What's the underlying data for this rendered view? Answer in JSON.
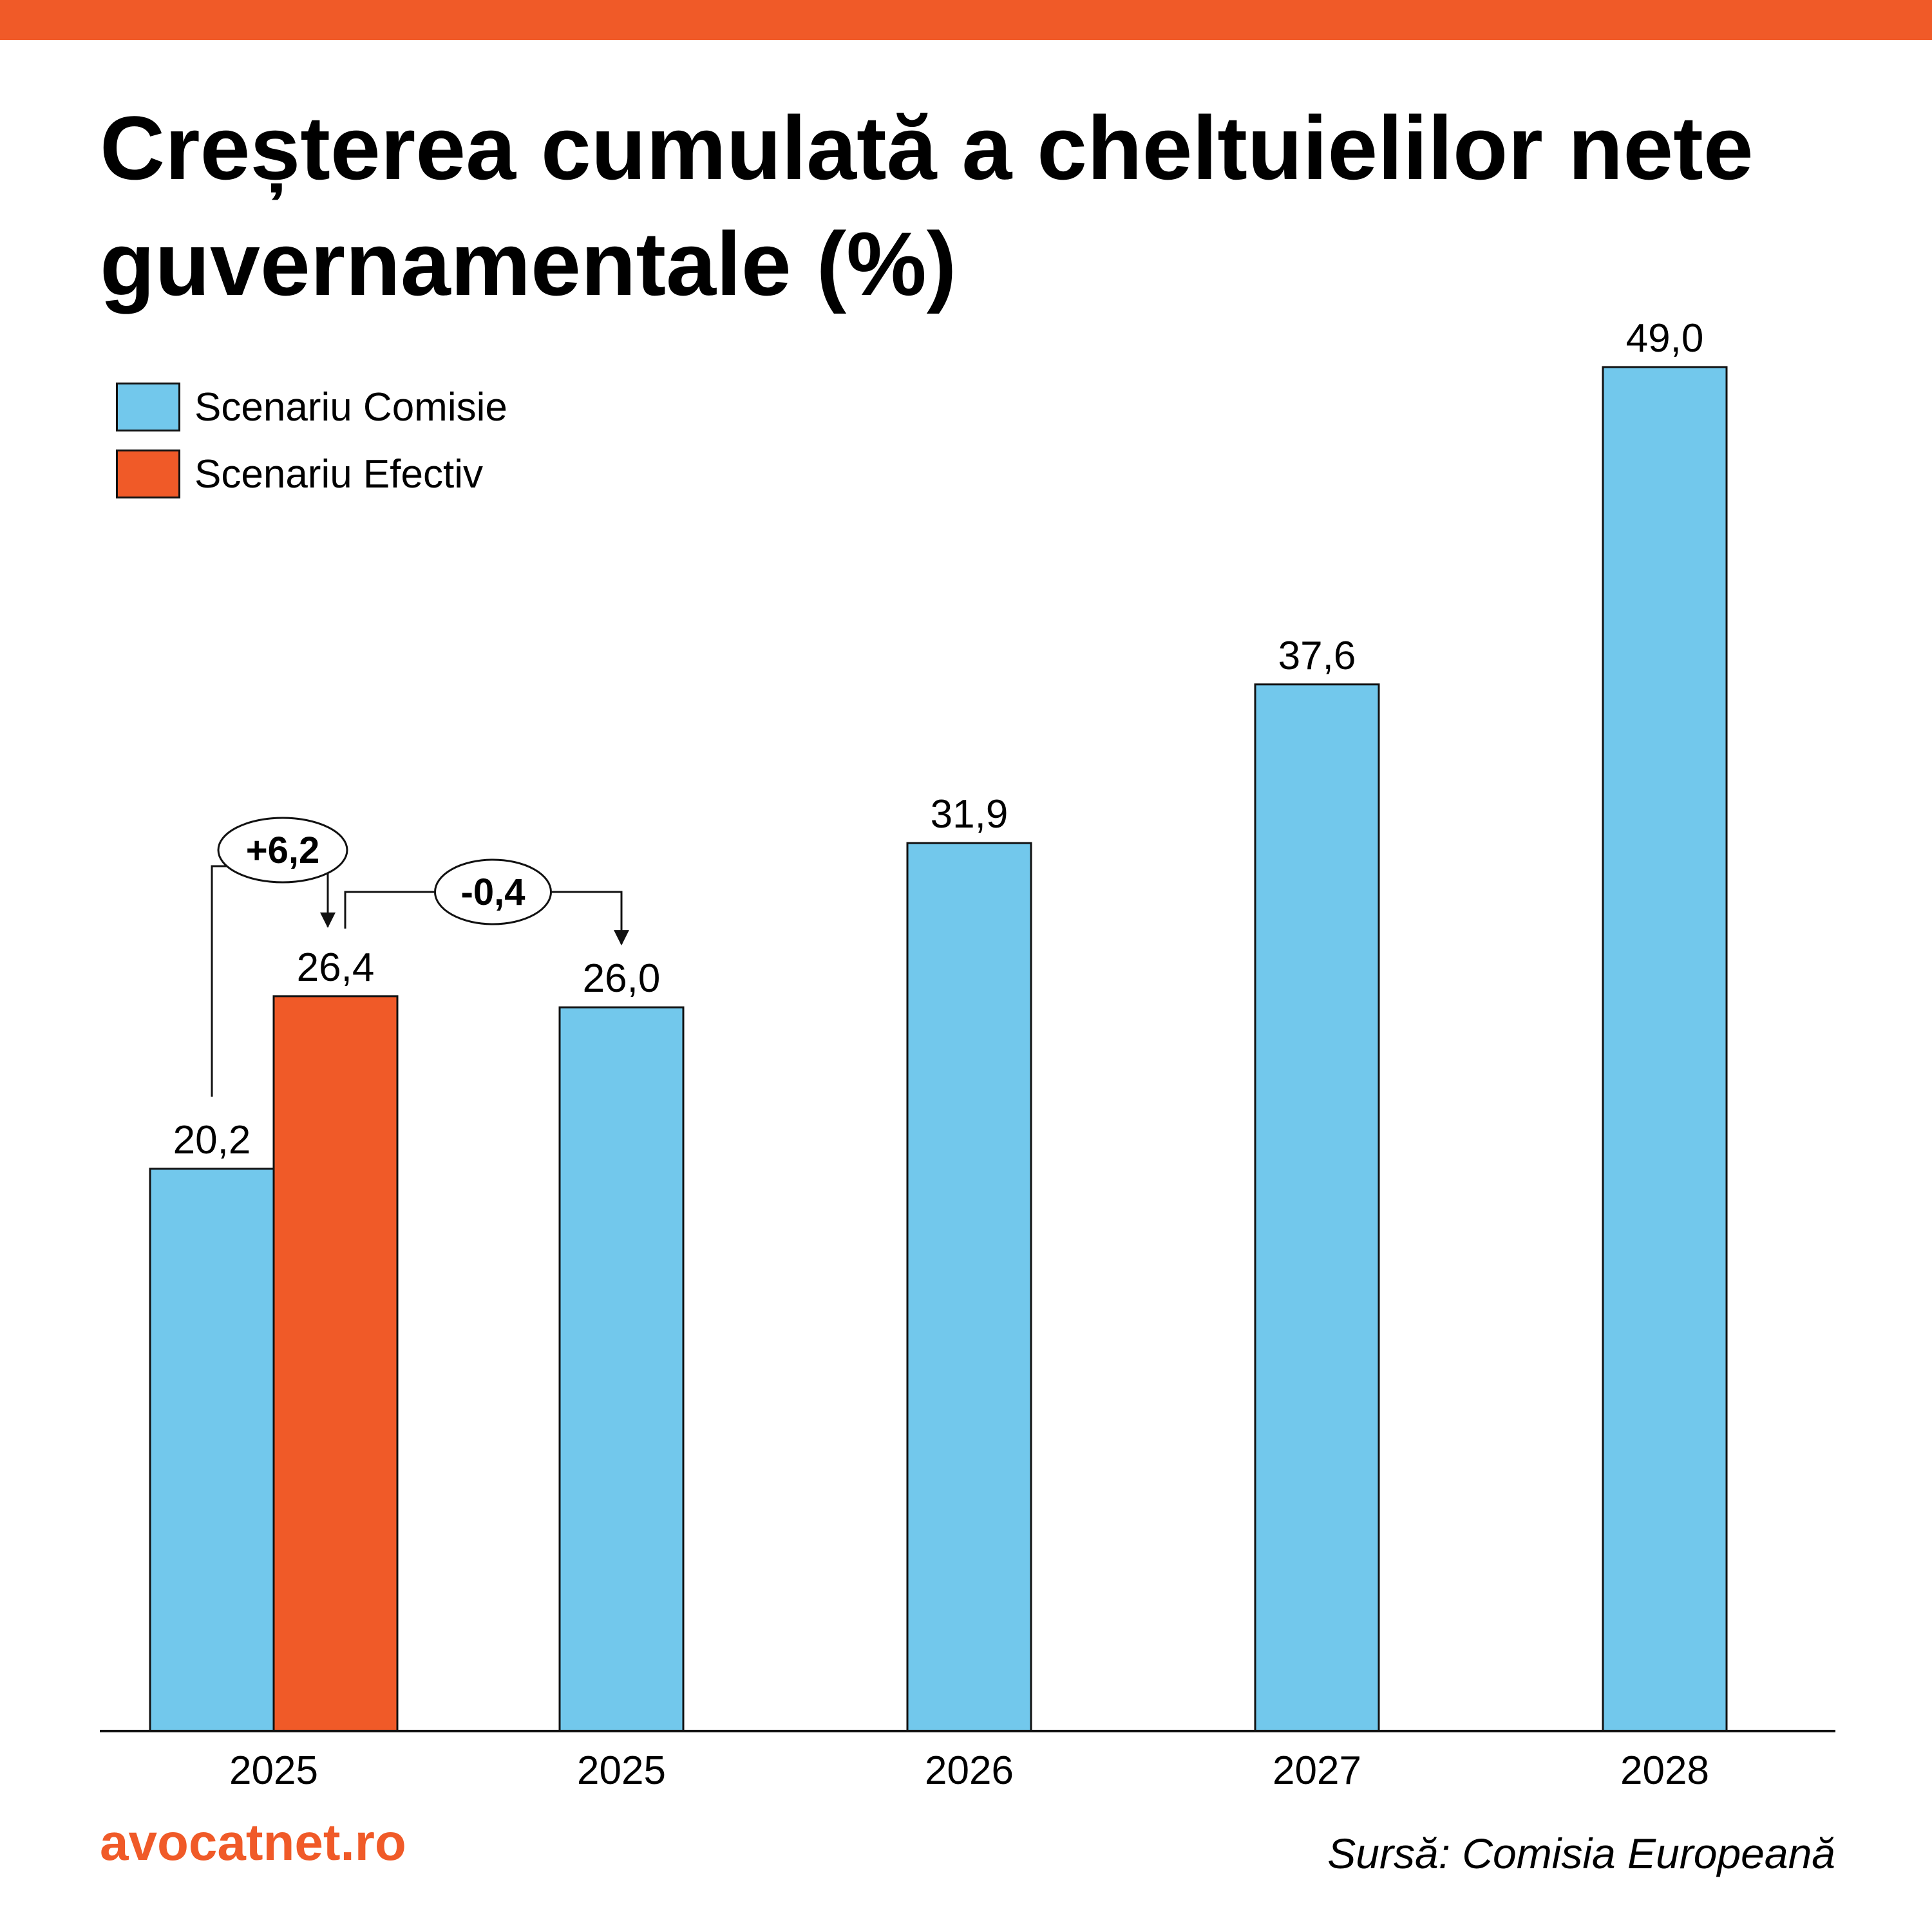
{
  "title": "Creșterea cumulată a cheltuielilor nete guvernamentale (%)",
  "colors": {
    "accent": "#f05a28",
    "comisie": "#72c8ec",
    "efectiv": "#f05a28",
    "outline": "#111111"
  },
  "brand": "avocatnet.ro",
  "source": "Sursă: Comisia Europeană",
  "legend": [
    {
      "label": "Scenariu Comisie",
      "color": "#72c8ec"
    },
    {
      "label": "Scenariu Efectiv",
      "color": "#f05a28"
    }
  ],
  "annotations": [
    {
      "text": "+6,2",
      "from_bar": 0,
      "to_bar": 1
    },
    {
      "text": "-0,4",
      "from_bar": 1,
      "to_bar": 2
    }
  ],
  "chart_data": {
    "type": "bar",
    "title": "Creșterea cumulată a cheltuielilor nete guvernamentale (%)",
    "categories": [
      "2025",
      "2025",
      "2026",
      "2027",
      "2028"
    ],
    "bars": [
      {
        "category": "2025",
        "series": "Scenariu Comisie",
        "value": 20.2,
        "label": "20,2",
        "group": 0
      },
      {
        "category": "2025",
        "series": "Scenariu Efectiv",
        "value": 26.4,
        "label": "26,4",
        "group": 0
      },
      {
        "category": "2025",
        "series": "Scenariu Comisie",
        "value": 26.0,
        "label": "26,0",
        "group": 1
      },
      {
        "category": "2026",
        "series": "Scenariu Comisie",
        "value": 31.9,
        "label": "31,9",
        "group": 2
      },
      {
        "category": "2027",
        "series": "Scenariu Comisie",
        "value": 37.6,
        "label": "37,6",
        "group": 3
      },
      {
        "category": "2028",
        "series": "Scenariu Comisie",
        "value": 49.0,
        "label": "49,0",
        "group": 4
      }
    ],
    "xlabel": "",
    "ylabel": "",
    "ylim": [
      0,
      49
    ],
    "grid": false,
    "legend_position": "top-left"
  }
}
